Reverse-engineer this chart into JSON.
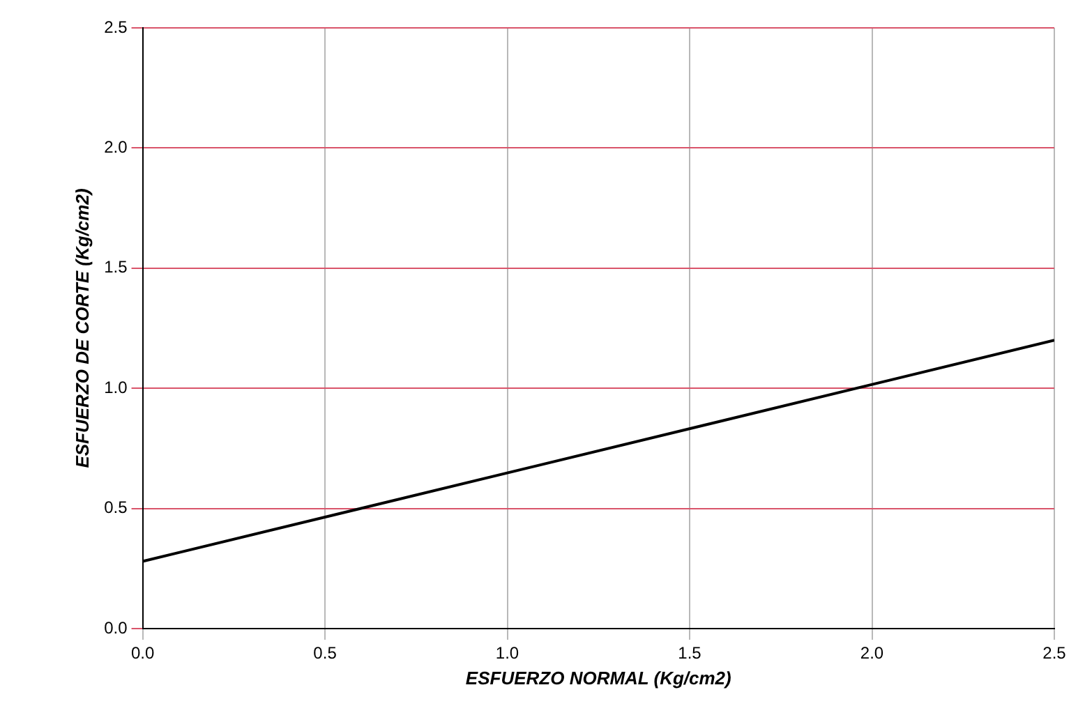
{
  "chart_data": {
    "type": "line",
    "xlabel": "ESFUERZO NORMAL (Kg/cm2)",
    "ylabel": "ESFUERZO DE CORTE (Kg/cm2)",
    "x": [
      0,
      2.5
    ],
    "series": [
      {
        "color": "#000000",
        "values": [
          0.28,
          1.2
        ]
      }
    ],
    "xlim": [
      0,
      2.5
    ],
    "ylim": [
      0,
      2.5
    ],
    "xticks": [
      {
        "value": 0,
        "label": "0.0"
      },
      {
        "value": 0.5,
        "label": "0.5"
      },
      {
        "value": 1,
        "label": "1.0"
      },
      {
        "value": 1.5,
        "label": "1.5"
      },
      {
        "value": 2,
        "label": "2.0"
      },
      {
        "value": 2.5,
        "label": "2.5"
      }
    ],
    "yticks": [
      {
        "value": 0,
        "label": "0.0"
      },
      {
        "value": 0.5,
        "label": "0.5"
      },
      {
        "value": 1,
        "label": "1.0"
      },
      {
        "value": 1.5,
        "label": "1.5"
      },
      {
        "value": 2,
        "label": "2.0"
      },
      {
        "value": 2.5,
        "label": "2.5"
      }
    ],
    "grid": true,
    "legend": false,
    "marker": "none",
    "line_style": "solid"
  }
}
